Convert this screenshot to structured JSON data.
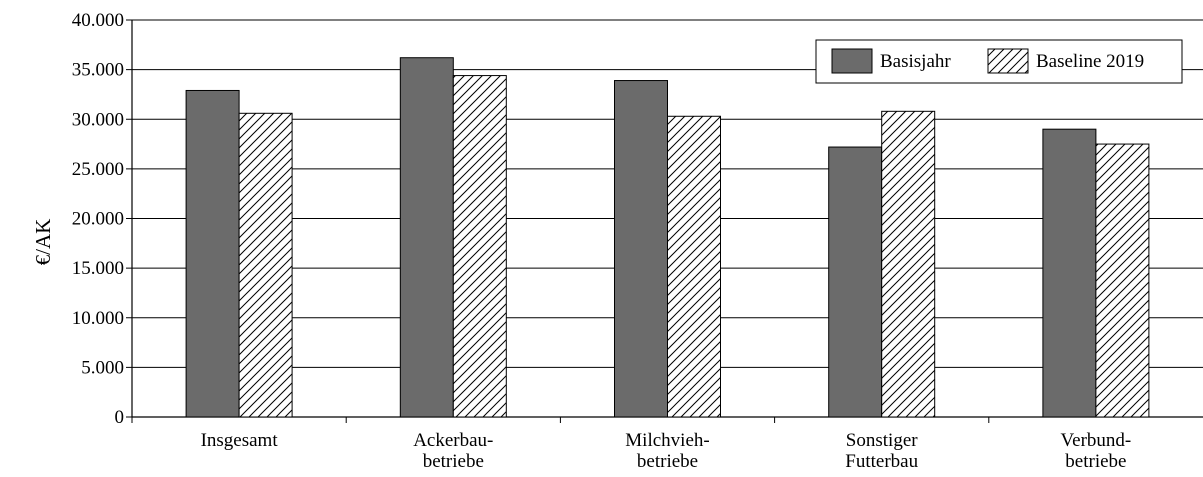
{
  "chart_data": {
    "type": "bar",
    "title": "",
    "xlabel": "",
    "ylabel": "€/AK",
    "ylim": [
      0,
      40000
    ],
    "yticks": [
      0,
      5000,
      10000,
      15000,
      20000,
      25000,
      30000,
      35000,
      40000
    ],
    "ytick_labels": [
      "0",
      "5.000",
      "10.000",
      "15.000",
      "20.000",
      "25.000",
      "30.000",
      "35.000",
      "40.000"
    ],
    "grid": "horizontal",
    "legend_position": "top-right",
    "categories": [
      [
        "Insgesamt"
      ],
      [
        "Ackerbau-",
        "betriebe"
      ],
      [
        "Milchvieh-",
        "betriebe"
      ],
      [
        "Sonstiger",
        "Futterbau"
      ],
      [
        "Verbund-",
        "betriebe"
      ]
    ],
    "series": [
      {
        "name": "Basisjahr",
        "fill": "solid",
        "color": "#6b6b6b",
        "values": [
          32900,
          36200,
          33900,
          27200,
          29000
        ]
      },
      {
        "name": "Baseline 2019",
        "fill": "hatched",
        "color": "#ffffff",
        "values": [
          30600,
          34400,
          30300,
          30800,
          27500
        ]
      }
    ]
  }
}
